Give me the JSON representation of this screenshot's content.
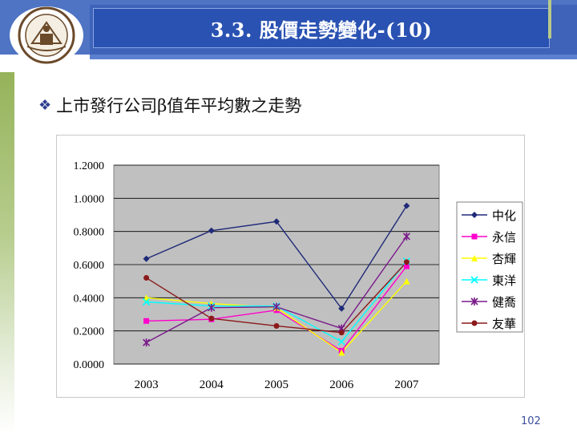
{
  "header": {
    "title": "3.3. 股價走勢變化-(10)",
    "logo_icon": "university-seal-icon"
  },
  "subtitle": {
    "bullet_icon": "diamond-bullet-icon",
    "text": "上市發行公司β值年平均數之走勢"
  },
  "chart_data": {
    "type": "line",
    "categories": [
      "2003",
      "2004",
      "2005",
      "2006",
      "2007"
    ],
    "ylim": [
      0,
      1.2
    ],
    "y_ticks": [
      "0.0000",
      "0.2000",
      "0.4000",
      "0.6000",
      "0.8000",
      "1.0000",
      "1.2000"
    ],
    "grid": true,
    "legend_position": "right",
    "series": [
      {
        "name": "中化",
        "color": "#1f2a78",
        "marker": "diamond",
        "values": [
          0.635,
          0.805,
          0.86,
          0.335,
          0.955
        ]
      },
      {
        "name": "永信",
        "color": "#ff00cc",
        "marker": "square",
        "values": [
          0.26,
          0.27,
          0.325,
          0.08,
          0.59
        ]
      },
      {
        "name": "杏輝",
        "color": "#ffff00",
        "marker": "triangle",
        "values": [
          0.4,
          0.365,
          0.34,
          0.07,
          0.5
        ]
      },
      {
        "name": "東洋",
        "color": "#00ffff",
        "marker": "x",
        "values": [
          0.375,
          0.35,
          0.35,
          0.135,
          0.62
        ]
      },
      {
        "name": "健喬",
        "color": "#7a1a8a",
        "marker": "star",
        "values": [
          0.13,
          0.34,
          0.345,
          0.215,
          0.77
        ]
      },
      {
        "name": "友華",
        "color": "#8b1a1a",
        "marker": "circle",
        "values": [
          0.52,
          0.275,
          0.23,
          0.19,
          0.615
        ]
      }
    ]
  },
  "footer": {
    "page_number": "102"
  }
}
